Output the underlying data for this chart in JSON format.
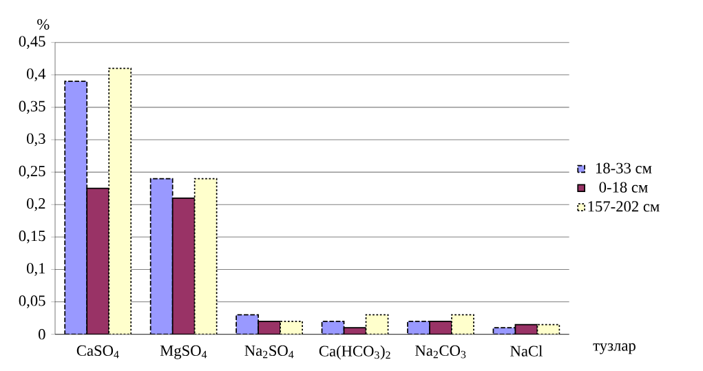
{
  "chart_data": {
    "type": "bar",
    "ylabel": "%",
    "xlabel": "тузлар",
    "categories": [
      "CaSO$_{4}$",
      "MgSO$_{4}$",
      "Na$_{2}$SO$_{4}$",
      "Ca(HCO$_{3}$)$_{2}$",
      "Na$_{2}$CO$_{3}$",
      "NaCl"
    ],
    "series": [
      {
        "name": "18-33 см",
        "color": "#9999ff",
        "line_style": "dashed",
        "values": [
          0.39,
          0.24,
          0.03,
          0.02,
          0.02,
          0.01
        ]
      },
      {
        "name": "0-18 см",
        "color": "#993366",
        "line_style": "solid",
        "values": [
          0.225,
          0.21,
          0.02,
          0.01,
          0.02,
          0.015
        ]
      },
      {
        "name": "157-202 см",
        "color": "#ffffcc",
        "line_style": "dotted",
        "values": [
          0.41,
          0.24,
          0.02,
          0.03,
          0.03,
          0.015
        ]
      }
    ],
    "ylim": [
      0,
      0.45
    ],
    "yticks": [
      0,
      {
        "value": 0.05,
        "label": "0,05"
      },
      {
        "value": 0.1,
        "label": "0,1"
      },
      {
        "value": 0.15,
        "label": "0,15"
      },
      {
        "value": 0.2,
        "label": "0,2"
      },
      {
        "value": 0.25,
        "label": "0,25"
      },
      {
        "value": 0.3,
        "label": "0,3"
      },
      {
        "value": 0.35,
        "label": "0,35"
      },
      {
        "value": 0.4,
        "label": "0,4"
      },
      {
        "value": 0.45,
        "label": "0,45"
      }
    ],
    "grid": "y",
    "legend": "right"
  }
}
